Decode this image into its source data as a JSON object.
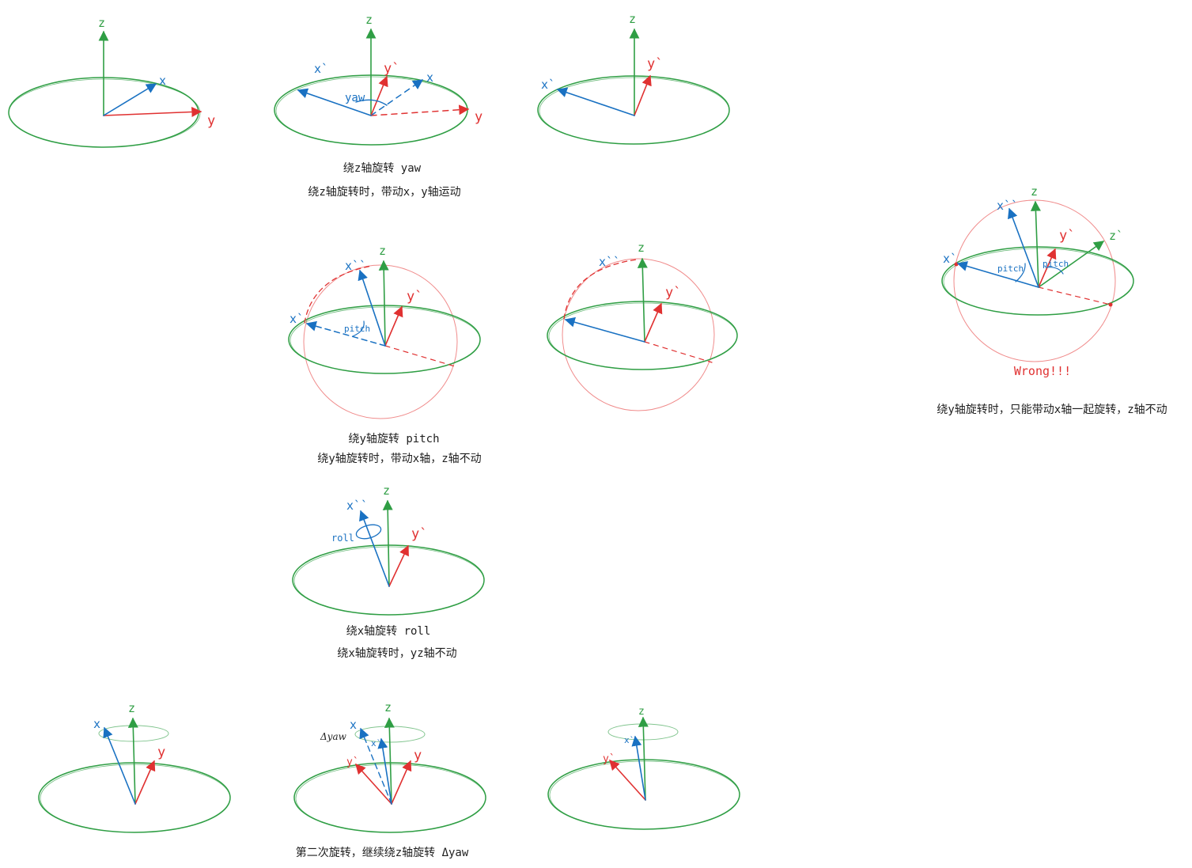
{
  "colors": {
    "green": "#2f9e44",
    "red": "#e03131",
    "blue": "#1971c2",
    "sphere": "#f08c8c",
    "text": "#1e1e1e"
  },
  "axis_labels": {
    "z": "z",
    "y": "y",
    "x": "x",
    "y_prime": "y`",
    "x_prime": "x`",
    "x_double_prime": "x``",
    "z_prime": "z`"
  },
  "angle_labels": {
    "yaw": "yaw",
    "pitch": "pitch",
    "roll": "roll",
    "delta_yaw": "Δyaw"
  },
  "captions": {
    "yaw_title": "绕z轴旋转 yaw",
    "yaw_desc": "绕z轴旋转时，带动x，y轴运动",
    "pitch_title": "绕y轴旋转 pitch",
    "pitch_desc": "绕y轴旋转时，带动x轴，z轴不动",
    "wrong": "Wrong!!!",
    "wrong_desc": "绕y轴旋转时，只能带动x轴一起旋转，z轴不动",
    "roll_title": "绕x轴旋转 roll",
    "roll_desc": "绕x轴旋转时，yz轴不动",
    "second_rotation": "第二次旋转，继续绕z轴旋转 Δyaw"
  }
}
